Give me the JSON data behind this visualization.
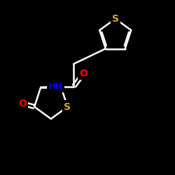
{
  "bg_color": "#000000",
  "atom_colors": {
    "S": "#DAA520",
    "O": "#FF0000",
    "N": "#0000FF",
    "C": "#FFFFFF",
    "H": "#FFFFFF"
  },
  "bond_color": "#FFFFFF",
  "bond_width": 1.8,
  "figsize": [
    2.5,
    2.5
  ],
  "dpi": 100,
  "xlim": [
    0,
    10
  ],
  "ylim": [
    0,
    10
  ]
}
